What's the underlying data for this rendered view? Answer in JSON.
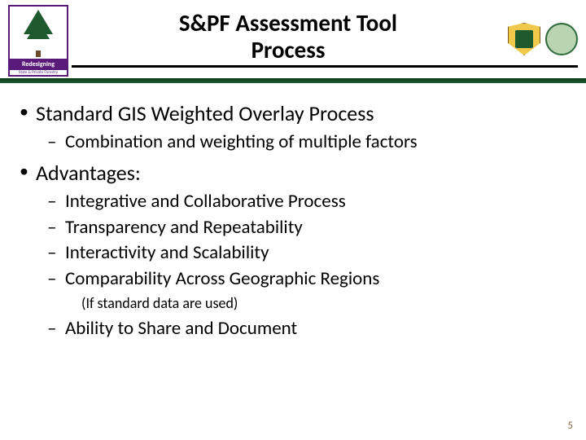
{
  "header": {
    "title_line1": "S&PF Assessment Tool",
    "title_line2": "Process",
    "left_logo_band": "Redesigning",
    "left_logo_sub": "State & Private Forestry"
  },
  "bullets": {
    "b1": "Standard GIS Weighted Overlay Process",
    "b1_sub1": "Combination and weighting of multiple factors",
    "b2": "Advantages:",
    "b2_sub1": "Integrative and Collaborative Process",
    "b2_sub2": "Transparency and Repeatability",
    "b2_sub3": "Interactivity and Scalability",
    "b2_sub4": "Comparability Across Geographic Regions",
    "b2_sub4_note": "(If standard data are used)",
    "b2_sub5": "Ability to Share and Document"
  },
  "page_number": "5",
  "colors": {
    "green_bar": "#1e5a2e",
    "purple": "#5a1a7a",
    "pagenum": "#8a6a4a"
  }
}
